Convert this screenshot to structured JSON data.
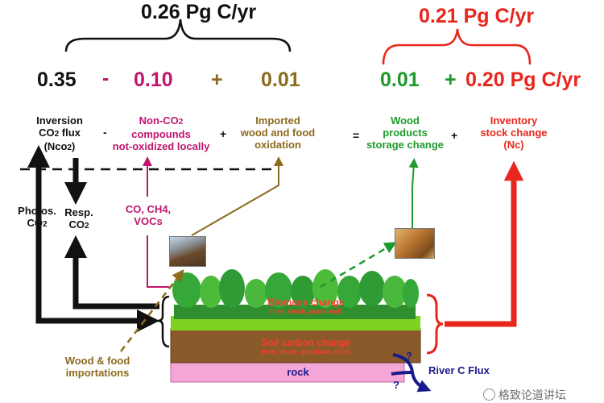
{
  "totals": {
    "left_total": "0.26 Pg C/yr",
    "right_total": "0.21 Pg C/yr"
  },
  "equation": {
    "inversion_value": "0.35",
    "minus_sign": "-",
    "non_co2_value": "0.10",
    "plus_sign_1": "+",
    "imported_value": "0.01",
    "wood_value": "0.01",
    "plus_sign_2": "+",
    "inventory_value": "0.20 Pg C/yr"
  },
  "labels": {
    "inversion_line1": "Inversion",
    "inversion_line2a": "CO",
    "inversion_line2_sub": "2",
    "inversion_line2b": "flux",
    "inversion_line3a": "(Nco",
    "inversion_line3_sub": "2",
    "inversion_line3b": ")",
    "minus_op": "-",
    "non_co2_line1a": "Non-CO",
    "non_co2_line1_sub": "2",
    "non_co2_line2": "compounds",
    "non_co2_line3": "not-oxidized locally",
    "plus_op_1": "+",
    "imported_line1": "Imported",
    "imported_line2": "wood and food",
    "imported_line3": "oxidation",
    "equals_op": "=",
    "wood_line1": "Wood",
    "wood_line2": "products",
    "wood_line3": "storage change",
    "plus_op_2": "+",
    "inventory_line1": "Inventory",
    "inventory_line2": "stock change",
    "inventory_line3": "(Nc)",
    "photos_line1": "Photos.",
    "photos_line2a": "CO",
    "photos_line2_sub": "2",
    "resp_line1": "Resp.",
    "resp_line2a": "CO",
    "resp_line2_sub": "2",
    "co_ch4_line1": "CO, CH4,",
    "co_ch4_line2": "VOCs",
    "importations_line1": "Wood & food",
    "importations_line2": "importations",
    "river_flux": "River C Flux",
    "question_mark_1": "?",
    "question_mark_2": "?"
  },
  "ecosystem": {
    "biomass_title": "Biomass change",
    "biomass_sub": "(tree, shrub, grassland)",
    "soil_title": "Soil carbon change",
    "soil_sub": "(tree, shrub, grassland, crop)",
    "rock_label": "rock"
  },
  "watermark": "格致论道讲坛",
  "colors": {
    "black": "#111111",
    "magenta": "#c0166e",
    "olive": "#8c6a1e",
    "green": "#1f9a2c",
    "red": "#e8261c",
    "navy": "#1a1a8c",
    "soil": "#8a5a2b",
    "rock": "#f4a6d8",
    "grass": "#7ed321",
    "tree": "#36a839"
  }
}
